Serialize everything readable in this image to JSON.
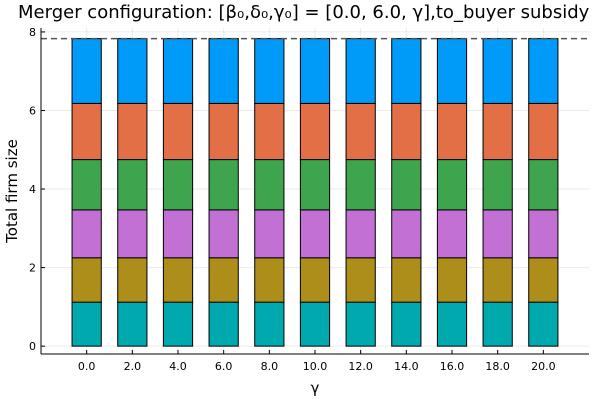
{
  "chart_data": {
    "type": "bar",
    "stacked": true,
    "title": "Merger configuration: [β₀,δ₀,γ₀] = [0.0, 6.0, γ],to_buyer subsidy",
    "xlabel": "γ",
    "ylabel": "Total firm size",
    "categories": [
      "0.0",
      "2.0",
      "4.0",
      "6.0",
      "8.0",
      "10.0",
      "12.0",
      "14.0",
      "16.0",
      "18.0",
      "20.0"
    ],
    "x": [
      0,
      2,
      4,
      6,
      8,
      10,
      12,
      14,
      16,
      18,
      20
    ],
    "xlim": [
      -2,
      22
    ],
    "ylim": [
      -0.2,
      8.1
    ],
    "yticks": [
      0,
      2,
      4,
      6,
      8
    ],
    "yticklabels": [
      "0",
      "2",
      "4",
      "6",
      "8"
    ],
    "grid": true,
    "legend": "none",
    "series": [
      {
        "color": "#00a9ad",
        "values": [
          1.12,
          1.12,
          1.12,
          1.12,
          1.12,
          1.12,
          1.12,
          1.12,
          1.12,
          1.12,
          1.12
        ]
      },
      {
        "color": "#ad8e1a",
        "values": [
          1.13,
          1.13,
          1.13,
          1.13,
          1.13,
          1.13,
          1.13,
          1.13,
          1.13,
          1.13,
          1.13
        ]
      },
      {
        "color": "#c270d3",
        "values": [
          1.22,
          1.22,
          1.22,
          1.22,
          1.22,
          1.22,
          1.22,
          1.22,
          1.22,
          1.22,
          1.22
        ]
      },
      {
        "color": "#3ea44e",
        "values": [
          1.28,
          1.28,
          1.28,
          1.28,
          1.28,
          1.28,
          1.28,
          1.28,
          1.28,
          1.28,
          1.28
        ]
      },
      {
        "color": "#e36f47",
        "values": [
          1.43,
          1.43,
          1.43,
          1.43,
          1.43,
          1.43,
          1.43,
          1.43,
          1.43,
          1.43,
          1.43
        ]
      },
      {
        "color": "#009af9",
        "values": [
          1.65,
          1.65,
          1.65,
          1.65,
          1.65,
          1.65,
          1.65,
          1.65,
          1.65,
          1.65,
          1.65
        ]
      }
    ],
    "reference_line": {
      "y": 7.83,
      "style": "dashed",
      "color": "#555555"
    }
  }
}
